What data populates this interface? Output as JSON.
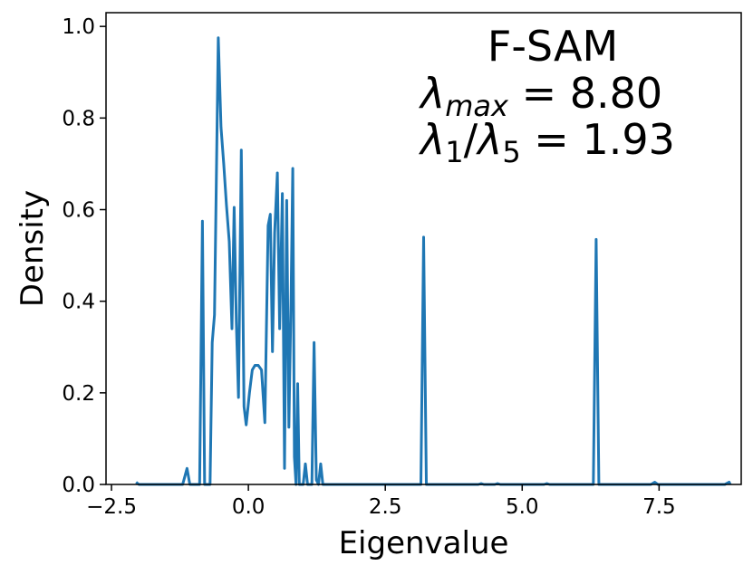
{
  "chart_data": {
    "type": "line",
    "title": "",
    "xlabel": "Eigenvalue",
    "ylabel": "Density",
    "xlim": [
      -2.6,
      9.0
    ],
    "ylim": [
      0.0,
      1.03
    ],
    "grid": false,
    "x_ticks": [
      -2.5,
      0.0,
      2.5,
      5.0,
      7.5
    ],
    "x_tick_labels": [
      "−2.5",
      "0.0",
      "2.5",
      "5.0",
      "7.5"
    ],
    "y_ticks": [
      0.0,
      0.2,
      0.4,
      0.6,
      0.8,
      1.0
    ],
    "y_tick_labels": [
      "0.0",
      "0.2",
      "0.4",
      "0.6",
      "0.8",
      "1.0"
    ],
    "annotation": {
      "line1": "F-SAM",
      "line2": {
        "lambda": "λ",
        "sub": "max",
        "rest": " = 8.80"
      },
      "line3": {
        "lambda1": "λ",
        "sub1": "1",
        "slash": "/",
        "lambda2": "λ",
        "sub2": "5",
        "rest": " = 1.93"
      }
    },
    "series": [
      {
        "color": "#1f77b4",
        "x": [
          -2.05,
          -2.0,
          -1.9,
          -1.2,
          -1.12,
          -1.07,
          -1.02,
          -0.97,
          -0.93,
          -0.89,
          -0.84,
          -0.8,
          -0.76,
          -0.7,
          -0.66,
          -0.62,
          -0.55,
          -0.5,
          -0.45,
          -0.4,
          -0.35,
          -0.3,
          -0.26,
          -0.22,
          -0.18,
          -0.13,
          -0.08,
          -0.04,
          0.02,
          0.07,
          0.12,
          0.18,
          0.24,
          0.3,
          0.36,
          0.4,
          0.44,
          0.48,
          0.53,
          0.57,
          0.62,
          0.66,
          0.7,
          0.74,
          0.78,
          0.81,
          0.84,
          0.87,
          0.9,
          0.93,
          0.96,
          1.0,
          1.04,
          1.08,
          1.12,
          1.16,
          1.2,
          1.24,
          1.28,
          1.32,
          1.36,
          1.4,
          1.44,
          1.48,
          1.52,
          1.56,
          1.6,
          1.65,
          1.7,
          1.74,
          1.78,
          1.82,
          1.86,
          1.9,
          2.0,
          2.5,
          3.0,
          3.1,
          3.15,
          3.2,
          3.25,
          3.3,
          3.4,
          4.2,
          4.25,
          4.3,
          4.5,
          4.55,
          4.6,
          5.4,
          5.45,
          5.5,
          6.25,
          6.3,
          6.35,
          6.4,
          6.45,
          7.35,
          7.42,
          7.48,
          8.7,
          8.78,
          8.8
        ],
        "y": [
          0.005,
          0.0,
          0.0,
          0.0,
          0.035,
          0.0,
          0.0,
          0.0,
          0.0,
          0.0,
          0.575,
          0.0,
          0.0,
          0.0,
          0.31,
          0.37,
          0.975,
          0.78,
          0.7,
          0.61,
          0.53,
          0.34,
          0.605,
          0.355,
          0.19,
          0.73,
          0.17,
          0.13,
          0.2,
          0.25,
          0.26,
          0.26,
          0.25,
          0.135,
          0.565,
          0.59,
          0.29,
          0.55,
          0.68,
          0.34,
          0.635,
          0.035,
          0.62,
          0.125,
          0.42,
          0.69,
          0.06,
          0.0,
          0.22,
          0.0,
          0.0,
          0.0,
          0.045,
          0.0,
          0.0,
          0.0,
          0.31,
          0.01,
          0.0,
          0.045,
          0.0,
          0.0,
          0.0,
          0.0,
          0.0,
          0.0,
          0.0,
          0.0,
          0.0,
          0.0,
          0.0,
          0.0,
          0.0,
          0.0,
          0.0,
          0.0,
          0.0,
          0.0,
          0.0,
          0.54,
          0.0,
          0.0,
          0.0,
          0.0,
          0.002,
          0.0,
          0.0,
          0.002,
          0.0,
          0.0,
          0.002,
          0.0,
          0.0,
          0.0,
          0.535,
          0.0,
          0.0,
          0.0,
          0.005,
          0.0,
          0.0,
          0.005,
          0.0
        ]
      }
    ]
  }
}
